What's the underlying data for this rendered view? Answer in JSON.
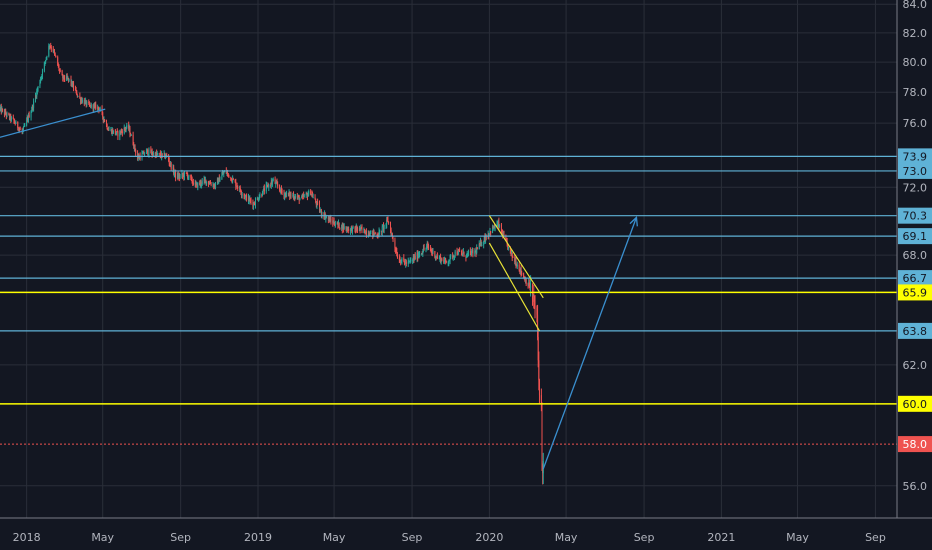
{
  "theme": {
    "background": "#131722",
    "axis_text": "#b2b5be",
    "grid": "#2a2e39",
    "candle_up": "#26a69a",
    "candle_down": "#ef5350",
    "level_blue": "#5fb2d6",
    "level_yellow": "#ffff00",
    "level_red": "#ef5350",
    "trendline": "#3a8fcf",
    "channel": "#e8e337"
  },
  "chart_data": {
    "type": "candlestick",
    "title": "",
    "xlabel": "",
    "ylabel": "",
    "x_range": [
      "2017-11-20",
      "2021-10-05"
    ],
    "ylim": [
      54.5,
      84.3
    ],
    "scale": "log",
    "grid": true,
    "y_ticks": [
      56.0,
      62.0,
      68.0,
      72.0,
      76.0,
      78.0,
      80.0,
      82.0,
      84.0
    ],
    "x_ticks": [
      {
        "label": "2018",
        "date": "2018-01-01"
      },
      {
        "label": "May",
        "date": "2018-05-01"
      },
      {
        "label": "Sep",
        "date": "2018-09-01"
      },
      {
        "label": "2019",
        "date": "2019-01-01"
      },
      {
        "label": "May",
        "date": "2019-05-01"
      },
      {
        "label": "Sep",
        "date": "2019-09-01"
      },
      {
        "label": "2020",
        "date": "2020-01-01"
      },
      {
        "label": "May",
        "date": "2020-05-01"
      },
      {
        "label": "Sep",
        "date": "2020-09-01"
      },
      {
        "label": "2021",
        "date": "2021-01-01"
      },
      {
        "label": "May",
        "date": "2021-05-01"
      },
      {
        "label": "Sep",
        "date": "2021-09-01"
      }
    ],
    "price_path": [
      [
        "2017-11-20",
        76.9
      ],
      [
        "2017-12-10",
        76.2
      ],
      [
        "2017-12-25",
        75.4
      ],
      [
        "2018-01-10",
        77.0
      ],
      [
        "2018-01-25",
        79.2
      ],
      [
        "2018-02-06",
        81.2
      ],
      [
        "2018-02-12",
        80.8
      ],
      [
        "2018-02-25",
        79.0
      ],
      [
        "2018-03-10",
        78.8
      ],
      [
        "2018-03-25",
        77.6
      ],
      [
        "2018-04-10",
        77.1
      ],
      [
        "2018-04-25",
        77.0
      ],
      [
        "2018-05-10",
        75.6
      ],
      [
        "2018-05-25",
        75.3
      ],
      [
        "2018-06-10",
        75.8
      ],
      [
        "2018-06-25",
        73.8
      ],
      [
        "2018-07-10",
        74.2
      ],
      [
        "2018-07-25",
        74.0
      ],
      [
        "2018-08-10",
        73.9
      ],
      [
        "2018-08-25",
        72.6
      ],
      [
        "2018-09-10",
        72.8
      ],
      [
        "2018-09-25",
        72.1
      ],
      [
        "2018-10-10",
        72.4
      ],
      [
        "2018-10-25",
        72.1
      ],
      [
        "2018-11-10",
        73.0
      ],
      [
        "2018-11-25",
        72.3
      ],
      [
        "2018-12-10",
        71.5
      ],
      [
        "2018-12-25",
        71.0
      ],
      [
        "2019-01-10",
        71.8
      ],
      [
        "2019-01-25",
        72.4
      ],
      [
        "2019-02-10",
        71.6
      ],
      [
        "2019-02-25",
        71.5
      ],
      [
        "2019-03-10",
        71.3
      ],
      [
        "2019-03-25",
        71.7
      ],
      [
        "2019-04-10",
        70.5
      ],
      [
        "2019-04-25",
        70.0
      ],
      [
        "2019-05-10",
        69.7
      ],
      [
        "2019-05-25",
        69.5
      ],
      [
        "2019-06-10",
        69.5
      ],
      [
        "2019-06-25",
        69.3
      ],
      [
        "2019-07-10",
        69.2
      ],
      [
        "2019-07-25",
        70.0
      ],
      [
        "2019-08-10",
        67.8
      ],
      [
        "2019-08-25",
        67.5
      ],
      [
        "2019-09-10",
        68.0
      ],
      [
        "2019-09-25",
        68.5
      ],
      [
        "2019-10-10",
        67.9
      ],
      [
        "2019-10-25",
        67.6
      ],
      [
        "2019-11-10",
        68.2
      ],
      [
        "2019-11-25",
        68.0
      ],
      [
        "2019-12-10",
        68.2
      ],
      [
        "2019-12-25",
        69.0
      ],
      [
        "2020-01-05",
        69.5
      ],
      [
        "2020-01-15",
        69.8
      ],
      [
        "2020-01-25",
        68.9
      ],
      [
        "2020-02-05",
        68.0
      ],
      [
        "2020-02-15",
        67.4
      ],
      [
        "2020-02-25",
        66.7
      ],
      [
        "2020-03-05",
        66.2
      ],
      [
        "2020-03-12",
        65.2
      ],
      [
        "2020-03-16",
        64.4
      ],
      [
        "2020-03-19",
        61.2
      ],
      [
        "2020-03-23",
        59.7
      ],
      [
        "2020-03-24",
        56.8
      ],
      [
        "2020-03-26",
        57.0
      ]
    ],
    "horizontal_levels": [
      {
        "value": 73.9,
        "label": "73.9",
        "style": "blue"
      },
      {
        "value": 73.0,
        "label": "73.0",
        "style": "blue"
      },
      {
        "value": 70.3,
        "label": "70.3",
        "style": "blue"
      },
      {
        "value": 69.1,
        "label": "69.1",
        "style": "blue"
      },
      {
        "value": 66.7,
        "label": "66.7",
        "style": "blue"
      },
      {
        "value": 65.9,
        "label": "65.9",
        "style": "yellow"
      },
      {
        "value": 63.8,
        "label": "63.8",
        "style": "blue"
      },
      {
        "value": 60.0,
        "label": "60.0",
        "style": "yellow"
      },
      {
        "value": 58.0,
        "label": "58.0",
        "style": "red-dotted"
      }
    ],
    "drawings": {
      "trendline": {
        "from": {
          "date": "2017-11-20",
          "value": 75.1
        },
        "to": {
          "date": "2018-05-05",
          "value": 76.9
        }
      },
      "channel_upper": {
        "from": {
          "date": "2020-01-01",
          "value": 70.3
        },
        "to": {
          "date": "2020-03-26",
          "value": 65.6
        }
      },
      "channel_lower": {
        "from": {
          "date": "2020-01-01",
          "value": 68.7
        },
        "to": {
          "date": "2020-03-20",
          "value": 63.8
        }
      },
      "projection_arrow": {
        "from": {
          "date": "2020-03-26",
          "value": 56.8
        },
        "to": {
          "date": "2020-08-20",
          "value": 70.2
        }
      }
    }
  }
}
